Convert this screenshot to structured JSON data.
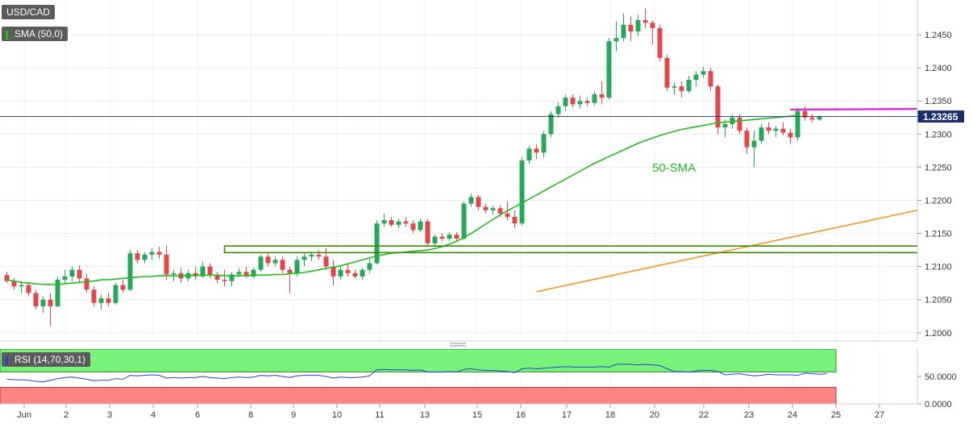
{
  "window": {
    "symbol": "USD/CAD",
    "indicator_label": "SMA (50,0)",
    "rsi_label": "RSI (14,70,30,1)"
  },
  "colors": {
    "bull": "#26a85a",
    "bear": "#e2474b",
    "sma": "#22bb22",
    "trendline": "#f7941d",
    "resistance": "#e21ce2",
    "box": "#3a8a00",
    "price_line": "#1c2f6b",
    "rsi_line": "#2a3fd6",
    "rsi_overbought": "#79f27a",
    "rsi_oversold": "#fd8585"
  },
  "chart_data": [
    {
      "type": "candlestick",
      "y_ticks": [
        "1.2450",
        "1.2400",
        "1.2350",
        "1.2300",
        "1.2250",
        "1.2200",
        "1.2150",
        "1.2100",
        "1.2050",
        "1.2000"
      ],
      "ylim": [
        1.199,
        1.25
      ],
      "x_ticks": [
        "Jun",
        "2",
        "3",
        "4",
        "6",
        "8",
        "9",
        "10",
        "11",
        "13",
        "15",
        "16",
        "17",
        "18",
        "20",
        "22",
        "23",
        "24",
        "25",
        "27"
      ],
      "current_price": "1.23265",
      "sma_annotation": "50-SMA",
      "candles": [
        [
          1.2087,
          1.2092,
          1.2075,
          1.2078
        ],
        [
          1.2078,
          1.2083,
          1.2065,
          1.207
        ],
        [
          1.207,
          1.2078,
          1.206,
          1.2072
        ],
        [
          1.2072,
          1.2075,
          1.2055,
          1.206
        ],
        [
          1.206,
          1.2065,
          1.2035,
          1.204
        ],
        [
          1.204,
          1.2055,
          1.203,
          1.205
        ],
        [
          1.205,
          1.206,
          1.201,
          1.204
        ],
        [
          1.204,
          1.2085,
          1.2038,
          1.208
        ],
        [
          1.208,
          1.2095,
          1.2075,
          1.2085
        ],
        [
          1.2085,
          1.21,
          1.2078,
          1.2095
        ],
        [
          1.2095,
          1.2102,
          1.2075,
          1.2082
        ],
        [
          1.2082,
          1.209,
          1.206,
          1.2065
        ],
        [
          1.2065,
          1.207,
          1.204,
          1.2045
        ],
        [
          1.2045,
          1.2058,
          1.2035,
          1.2052
        ],
        [
          1.2052,
          1.206,
          1.204,
          1.2045
        ],
        [
          1.2045,
          1.2075,
          1.2042,
          1.2072
        ],
        [
          1.2072,
          1.208,
          1.206,
          1.2065
        ],
        [
          1.2065,
          1.2125,
          1.2063,
          1.212
        ],
        [
          1.212,
          1.2125,
          1.2105,
          1.211
        ],
        [
          1.211,
          1.2122,
          1.2105,
          1.2118
        ],
        [
          1.2118,
          1.2128,
          1.211,
          1.2122
        ],
        [
          1.2122,
          1.213,
          1.2112,
          1.2118
        ],
        [
          1.2118,
          1.2132,
          1.208,
          1.2088
        ],
        [
          1.2088,
          1.2095,
          1.2078,
          1.209
        ],
        [
          1.209,
          1.2098,
          1.2075,
          1.2082
        ],
        [
          1.2082,
          1.2095,
          1.2078,
          1.209
        ],
        [
          1.209,
          1.21,
          1.208,
          1.2085
        ],
        [
          1.2085,
          1.2108,
          1.2083,
          1.21
        ],
        [
          1.21,
          1.2105,
          1.2082,
          1.2088
        ],
        [
          1.2088,
          1.2092,
          1.2075,
          1.208
        ],
        [
          1.208,
          1.2095,
          1.207,
          1.2078
        ],
        [
          1.2078,
          1.2092,
          1.207,
          1.2088
        ],
        [
          1.2088,
          1.2098,
          1.2084,
          1.2092
        ],
        [
          1.2092,
          1.21,
          1.2082,
          1.2085
        ],
        [
          1.2085,
          1.2098,
          1.2082,
          1.2095
        ],
        [
          1.2095,
          1.2118,
          1.2092,
          1.2115
        ],
        [
          1.2115,
          1.212,
          1.21,
          1.2105
        ],
        [
          1.2105,
          1.2115,
          1.21,
          1.211
        ],
        [
          1.211,
          1.2115,
          1.209,
          1.2095
        ],
        [
          1.2095,
          1.21,
          1.206,
          1.209
        ],
        [
          1.209,
          1.2115,
          1.2085,
          1.211
        ],
        [
          1.211,
          1.212,
          1.21,
          1.2115
        ],
        [
          1.2115,
          1.2122,
          1.2108,
          1.2118
        ],
        [
          1.2118,
          1.2125,
          1.211,
          1.2115
        ],
        [
          1.2115,
          1.2128,
          1.2095,
          1.21
        ],
        [
          1.21,
          1.211,
          1.2072,
          1.2085
        ],
        [
          1.2085,
          1.21,
          1.208,
          1.2095
        ],
        [
          1.2095,
          1.2105,
          1.2085,
          1.209
        ],
        [
          1.209,
          1.2095,
          1.2082,
          1.2085
        ],
        [
          1.2085,
          1.2098,
          1.208,
          1.2095
        ],
        [
          1.2095,
          1.2112,
          1.209,
          1.2105
        ],
        [
          1.2105,
          1.217,
          1.2103,
          1.2165
        ],
        [
          1.2165,
          1.218,
          1.216,
          1.217
        ],
        [
          1.217,
          1.2175,
          1.216,
          1.2163
        ],
        [
          1.2163,
          1.2172,
          1.2158,
          1.2168
        ],
        [
          1.2168,
          1.2175,
          1.216,
          1.2165
        ],
        [
          1.2165,
          1.217,
          1.215,
          1.2155
        ],
        [
          1.2155,
          1.2172,
          1.2152,
          1.2168
        ],
        [
          1.2168,
          1.2172,
          1.213,
          1.2135
        ],
        [
          1.2135,
          1.2148,
          1.2132,
          1.2145
        ],
        [
          1.2145,
          1.215,
          1.2138,
          1.2142
        ],
        [
          1.2142,
          1.2152,
          1.2138,
          1.2148
        ],
        [
          1.2148,
          1.2152,
          1.2138,
          1.2142
        ],
        [
          1.2142,
          1.2198,
          1.214,
          1.2195
        ],
        [
          1.2195,
          1.221,
          1.219,
          1.2205
        ],
        [
          1.2205,
          1.2208,
          1.2185,
          1.219
        ],
        [
          1.219,
          1.2195,
          1.218,
          1.2185
        ],
        [
          1.2185,
          1.2192,
          1.2178,
          1.2188
        ],
        [
          1.2188,
          1.2192,
          1.2175,
          1.218
        ],
        [
          1.218,
          1.2198,
          1.217,
          1.2175
        ],
        [
          1.2175,
          1.2185,
          1.2158,
          1.2165
        ],
        [
          1.2165,
          1.2265,
          1.2162,
          1.226
        ],
        [
          1.226,
          1.2282,
          1.2255,
          1.2278
        ],
        [
          1.2278,
          1.2285,
          1.2262,
          1.2272
        ],
        [
          1.2272,
          1.2305,
          1.2265,
          1.23
        ],
        [
          1.23,
          1.2335,
          1.2295,
          1.233
        ],
        [
          1.233,
          1.2348,
          1.2325,
          1.2342
        ],
        [
          1.2342,
          1.236,
          1.2335,
          1.2355
        ],
        [
          1.2355,
          1.236,
          1.234,
          1.2345
        ],
        [
          1.2345,
          1.2358,
          1.2338,
          1.235
        ],
        [
          1.235,
          1.2355,
          1.2342,
          1.2347
        ],
        [
          1.2347,
          1.2365,
          1.2343,
          1.236
        ],
        [
          1.236,
          1.238,
          1.2345,
          1.2355
        ],
        [
          1.2355,
          1.2445,
          1.2352,
          1.244
        ],
        [
          1.244,
          1.247,
          1.2425,
          1.2445
        ],
        [
          1.2445,
          1.2482,
          1.244,
          1.2465
        ],
        [
          1.2465,
          1.2478,
          1.244,
          1.2455
        ],
        [
          1.2455,
          1.248,
          1.2448,
          1.2472
        ],
        [
          1.2472,
          1.249,
          1.246,
          1.2468
        ],
        [
          1.2468,
          1.2472,
          1.2435,
          1.246
        ],
        [
          1.246,
          1.2465,
          1.241,
          1.2415
        ],
        [
          1.2415,
          1.242,
          1.2365,
          1.237
        ],
        [
          1.237,
          1.2378,
          1.236,
          1.2372
        ],
        [
          1.2372,
          1.238,
          1.2355,
          1.2365
        ],
        [
          1.2365,
          1.2388,
          1.2362,
          1.2382
        ],
        [
          1.2382,
          1.2395,
          1.2372,
          1.239
        ],
        [
          1.239,
          1.2402,
          1.2385,
          1.2395
        ],
        [
          1.2395,
          1.24,
          1.2365,
          1.2372
        ],
        [
          1.2372,
          1.2375,
          1.23,
          1.231
        ],
        [
          1.231,
          1.2322,
          1.2295,
          1.2315
        ],
        [
          1.2315,
          1.233,
          1.2308,
          1.2325
        ],
        [
          1.2325,
          1.233,
          1.23,
          1.2305
        ],
        [
          1.2305,
          1.231,
          1.227,
          1.228
        ],
        [
          1.228,
          1.2305,
          1.225,
          1.229
        ],
        [
          1.229,
          1.2315,
          1.2285,
          1.231
        ],
        [
          1.231,
          1.2318,
          1.23,
          1.2305
        ],
        [
          1.2305,
          1.2312,
          1.2295,
          1.2308
        ],
        [
          1.2308,
          1.2318,
          1.2298,
          1.2302
        ],
        [
          1.2302,
          1.2308,
          1.2285,
          1.2295
        ],
        [
          1.2295,
          1.234,
          1.229,
          1.2335
        ],
        [
          1.2335,
          1.2342,
          1.232,
          1.2325
        ],
        [
          1.2325,
          1.233,
          1.2318,
          1.2322
        ],
        [
          1.2322,
          1.2328,
          1.232,
          1.2326
        ]
      ],
      "sma_50": [
        1.208,
        1.2078,
        1.2076,
        1.2075,
        1.2074,
        1.2073,
        1.2073,
        1.2073,
        1.2074,
        1.2075,
        1.2076,
        1.2077,
        1.2078,
        1.208,
        1.208,
        1.2081,
        1.2082,
        1.2083,
        1.2084,
        1.2085,
        1.2085,
        1.2086,
        1.2086,
        1.2086,
        1.2086,
        1.2086,
        1.2087,
        1.2087,
        1.2087,
        1.2087,
        1.2086,
        1.2086,
        1.2086,
        1.2086,
        1.2087,
        1.2087,
        1.2087,
        1.2088,
        1.2088,
        1.2089,
        1.209,
        1.2091,
        1.2093,
        1.2095,
        1.2097,
        1.2099,
        1.2101,
        1.2104,
        1.2107,
        1.211,
        1.2113,
        1.2116,
        1.2118,
        1.212,
        1.2121,
        1.2122,
        1.2123,
        1.2124,
        1.2125,
        1.2127,
        1.213,
        1.2134,
        1.2138,
        1.2144,
        1.215,
        1.2157,
        1.2164,
        1.2171,
        1.2178,
        1.2184,
        1.219,
        1.2196,
        1.2202,
        1.2208,
        1.2214,
        1.222,
        1.2226,
        1.2232,
        1.2238,
        1.2244,
        1.225,
        1.2256,
        1.2261,
        1.2266,
        1.2271,
        1.2276,
        1.2281,
        1.2286,
        1.229,
        1.2294,
        1.2298,
        1.2301,
        1.2304,
        1.2307,
        1.2309,
        1.2311,
        1.2313,
        1.2315,
        1.2317,
        1.2318,
        1.2319,
        1.232,
        1.2321,
        1.2322,
        1.2323,
        1.2324,
        1.2325,
        1.2326,
        1.2327,
        1.2328
      ],
      "sma_start_index": 0,
      "support_line": {
        "from": [
          73,
          1.2062
        ],
        "to": [
          181,
          1.2315
        ]
      },
      "resistance_line": {
        "from": [
          108,
          1.2337
        ],
        "to": [
          181,
          1.2341
        ]
      },
      "range_box": {
        "x_from": 30,
        "x_to": 185,
        "y_low": 1.2121,
        "y_high": 1.2131
      }
    },
    {
      "type": "line",
      "title": "RSI (14,70,30,1)",
      "y_ticks": [
        "50.0000",
        "0.0000"
      ],
      "ylim": [
        0,
        100
      ],
      "overbought": 70,
      "oversold": 30,
      "values": [
        45,
        44,
        44,
        43,
        41,
        40,
        43,
        46,
        48,
        49,
        47,
        45,
        42,
        43,
        43,
        46,
        45,
        52,
        51,
        52,
        53,
        52,
        47,
        48,
        47,
        48,
        48,
        50,
        48,
        47,
        46,
        48,
        49,
        48,
        49,
        52,
        51,
        52,
        50,
        48,
        51,
        52,
        52,
        52,
        50,
        47,
        49,
        48,
        48,
        49,
        51,
        62,
        63,
        62,
        62,
        62,
        61,
        62,
        58,
        58,
        58,
        59,
        58,
        63,
        64,
        62,
        61,
        61,
        60,
        59,
        57,
        64,
        65,
        64,
        65,
        66,
        67,
        68,
        67,
        67,
        67,
        67,
        68,
        67,
        72,
        72,
        72,
        71,
        72,
        71,
        70,
        64,
        59,
        59,
        58,
        60,
        61,
        61,
        59,
        53,
        54,
        55,
        53,
        51,
        52,
        54,
        53,
        53,
        53,
        52,
        56,
        55,
        54,
        55
      ]
    }
  ]
}
